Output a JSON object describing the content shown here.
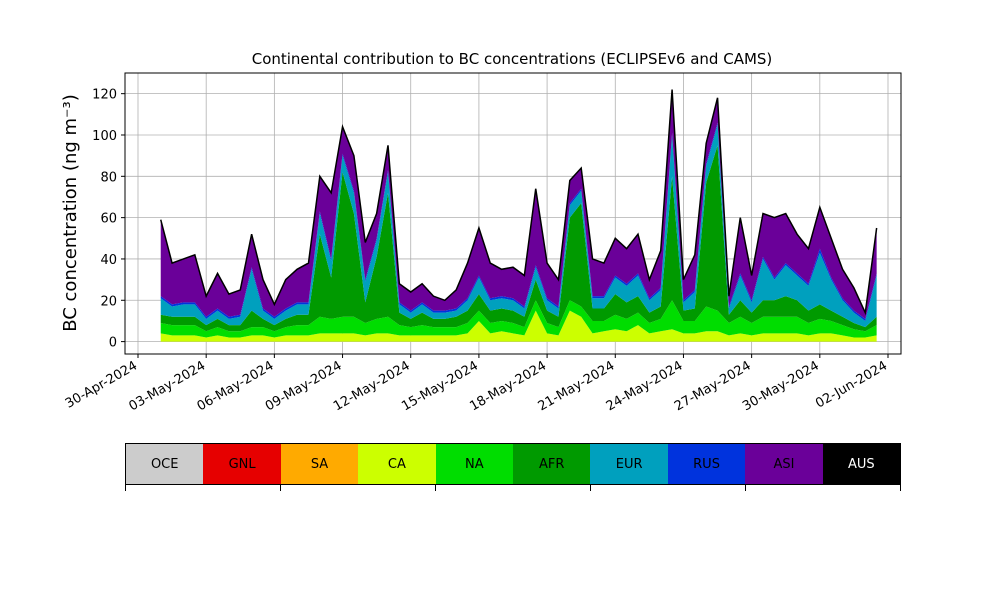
{
  "chart_data": {
    "type": "area",
    "title": "Continental contribution to BC concentrations (ECLIPSEv6 and CAMS)",
    "xlabel": "",
    "ylabel": "BC concentration (ng m⁻³)",
    "ylim": [
      -6,
      130
    ],
    "yticks": [
      0,
      20,
      40,
      60,
      80,
      100,
      120
    ],
    "xlim": [
      "2024-04-30",
      "2024-06-02"
    ],
    "xticks": [
      "30-Apr-2024",
      "03-May-2024",
      "06-May-2024",
      "09-May-2024",
      "12-May-2024",
      "15-May-2024",
      "18-May-2024",
      "21-May-2024",
      "24-May-2024",
      "27-May-2024",
      "30-May-2024",
      "02-Jun-2024"
    ],
    "grid": true,
    "stack_order": [
      "CA",
      "NA",
      "AFR",
      "EUR",
      "RUS",
      "ASI"
    ],
    "series_colors": {
      "OCE": "#cccccc",
      "GNL": "#e60000",
      "SA": "#ffaa00",
      "CA": "#ccff00",
      "NA": "#00dd00",
      "AFR": "#009a00",
      "EUR": "#00a0be",
      "RUS": "#0033dd",
      "ASI": "#6a0099",
      "AUS": "#000000"
    },
    "x": [
      "2024-05-01",
      "2024-05-01 12:00",
      "2024-05-02",
      "2024-05-02 12:00",
      "2024-05-03",
      "2024-05-03 12:00",
      "2024-05-04",
      "2024-05-04 12:00",
      "2024-05-05",
      "2024-05-05 12:00",
      "2024-05-06",
      "2024-05-06 12:00",
      "2024-05-07",
      "2024-05-07 12:00",
      "2024-05-08",
      "2024-05-08 12:00",
      "2024-05-09",
      "2024-05-09 12:00",
      "2024-05-10",
      "2024-05-10 12:00",
      "2024-05-11",
      "2024-05-11 12:00",
      "2024-05-12",
      "2024-05-12 12:00",
      "2024-05-13",
      "2024-05-13 12:00",
      "2024-05-14",
      "2024-05-14 12:00",
      "2024-05-15",
      "2024-05-15 12:00",
      "2024-05-16",
      "2024-05-16 12:00",
      "2024-05-17",
      "2024-05-17 12:00",
      "2024-05-18",
      "2024-05-18 12:00",
      "2024-05-19",
      "2024-05-19 12:00",
      "2024-05-20",
      "2024-05-20 12:00",
      "2024-05-21",
      "2024-05-21 12:00",
      "2024-05-22",
      "2024-05-22 12:00",
      "2024-05-23",
      "2024-05-23 12:00",
      "2024-05-24",
      "2024-05-24 12:00",
      "2024-05-25",
      "2024-05-25 12:00",
      "2024-05-26",
      "2024-05-26 12:00",
      "2024-05-27",
      "2024-05-27 12:00",
      "2024-05-28",
      "2024-05-28 12:00",
      "2024-05-29",
      "2024-05-29 12:00",
      "2024-05-30",
      "2024-05-30 12:00",
      "2024-05-31",
      "2024-05-31 12:00",
      "2024-06-01",
      "2024-06-01 12:00"
    ],
    "total": [
      59,
      38,
      40,
      42,
      22,
      33,
      23,
      25,
      52,
      30,
      18,
      30,
      35,
      38,
      80,
      72,
      104,
      90,
      48,
      62,
      95,
      28,
      24,
      28,
      22,
      20,
      25,
      38,
      55,
      38,
      35,
      36,
      32,
      74,
      38,
      30,
      78,
      84,
      40,
      38,
      50,
      45,
      52,
      30,
      44,
      122,
      30,
      42,
      96,
      118,
      22,
      60,
      32,
      62,
      60,
      62,
      52,
      45,
      65,
      50,
      35,
      26,
      14,
      55
    ],
    "series": [
      {
        "name": "CA",
        "values": [
          4,
          3,
          3,
          3,
          2,
          3,
          2,
          2,
          3,
          3,
          2,
          3,
          3,
          3,
          4,
          4,
          4,
          4,
          3,
          4,
          4,
          3,
          3,
          3,
          3,
          3,
          3,
          4,
          10,
          4,
          5,
          4,
          3,
          15,
          4,
          3,
          15,
          12,
          4,
          5,
          6,
          5,
          8,
          4,
          5,
          6,
          4,
          4,
          5,
          5,
          3,
          4,
          3,
          4,
          4,
          4,
          4,
          3,
          4,
          4,
          3,
          2,
          2,
          3
        ]
      },
      {
        "name": "NA",
        "values": [
          5,
          5,
          5,
          5,
          3,
          4,
          3,
          3,
          4,
          4,
          3,
          4,
          5,
          5,
          8,
          7,
          8,
          8,
          6,
          7,
          8,
          5,
          4,
          5,
          4,
          4,
          4,
          5,
          5,
          5,
          5,
          5,
          4,
          5,
          5,
          4,
          5,
          5,
          6,
          5,
          7,
          6,
          6,
          5,
          6,
          14,
          6,
          6,
          12,
          10,
          6,
          8,
          6,
          8,
          8,
          8,
          8,
          6,
          7,
          6,
          5,
          4,
          3,
          5
        ]
      },
      {
        "name": "AFR",
        "values": [
          4,
          4,
          4,
          4,
          3,
          4,
          3,
          3,
          8,
          4,
          3,
          4,
          5,
          5,
          40,
          20,
          70,
          50,
          10,
          30,
          60,
          6,
          4,
          6,
          4,
          4,
          5,
          6,
          8,
          6,
          6,
          6,
          5,
          10,
          6,
          5,
          40,
          50,
          6,
          6,
          10,
          8,
          8,
          5,
          6,
          60,
          5,
          6,
          60,
          80,
          4,
          8,
          5,
          8,
          8,
          10,
          8,
          6,
          7,
          5,
          4,
          3,
          2,
          4
        ]
      },
      {
        "name": "EUR",
        "values": [
          8,
          5,
          6,
          6,
          3,
          4,
          3,
          4,
          20,
          4,
          3,
          4,
          5,
          5,
          10,
          8,
          8,
          10,
          10,
          8,
          10,
          4,
          3,
          4,
          3,
          3,
          3,
          5,
          8,
          5,
          5,
          5,
          4,
          6,
          5,
          4,
          6,
          6,
          5,
          5,
          8,
          8,
          10,
          6,
          8,
          20,
          4,
          8,
          8,
          10,
          3,
          12,
          5,
          20,
          10,
          15,
          12,
          12,
          25,
          15,
          8,
          5,
          3,
          20
        ]
      },
      {
        "name": "RUS",
        "values": [
          1,
          1,
          1,
          1,
          1,
          1,
          1,
          1,
          1,
          1,
          1,
          1,
          1,
          1,
          1,
          1,
          1,
          1,
          1,
          1,
          1,
          1,
          1,
          1,
          1,
          1,
          1,
          1,
          1,
          1,
          1,
          1,
          1,
          1,
          1,
          1,
          1,
          1,
          1,
          1,
          1,
          1,
          1,
          1,
          1,
          1,
          1,
          1,
          1,
          1,
          1,
          1,
          1,
          1,
          1,
          1,
          1,
          1,
          2,
          1,
          1,
          1,
          1,
          1
        ]
      },
      {
        "name": "ASI",
        "values": [
          37,
          20,
          21,
          23,
          10,
          17,
          11,
          12,
          16,
          14,
          6,
          14,
          16,
          19,
          17,
          32,
          13,
          17,
          18,
          12,
          12,
          9,
          9,
          9,
          7,
          5,
          9,
          17,
          23,
          17,
          13,
          15,
          15,
          37,
          17,
          13,
          11,
          10,
          18,
          16,
          18,
          17,
          19,
          9,
          18,
          21,
          10,
          17,
          10,
          12,
          5,
          27,
          12,
          21,
          29,
          24,
          19,
          17,
          20,
          19,
          14,
          11,
          3,
          22
        ]
      }
    ]
  },
  "legend": {
    "items": [
      {
        "label": "OCE",
        "color": "#cccccc"
      },
      {
        "label": "GNL",
        "color": "#e60000"
      },
      {
        "label": "SA",
        "color": "#ffaa00"
      },
      {
        "label": "CA",
        "color": "#ccff00"
      },
      {
        "label": "NA",
        "color": "#00dd00"
      },
      {
        "label": "AFR",
        "color": "#009a00"
      },
      {
        "label": "EUR",
        "color": "#00a0be"
      },
      {
        "label": "RUS",
        "color": "#0033dd"
      },
      {
        "label": "ASI",
        "color": "#6a0099"
      },
      {
        "label": "AUS",
        "color": "#000000"
      }
    ]
  }
}
